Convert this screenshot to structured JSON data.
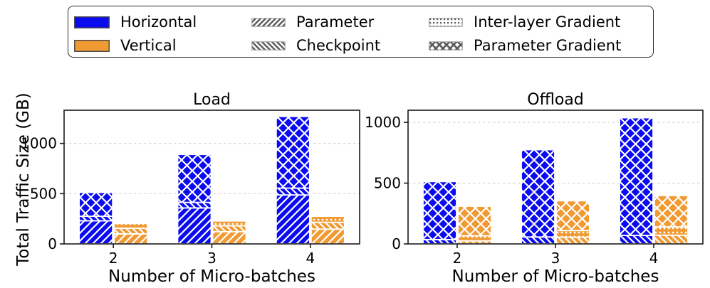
{
  "figure": {
    "colors": {
      "horizontal": "#0b0bf0",
      "vertical": "#f09a33",
      "legend_hatch": "#5a5a5a",
      "grid": "#d2d2d2",
      "axis": "#1a1a1a",
      "bar_edge": "#ffffff"
    }
  },
  "legend": {
    "entries": [
      {
        "label": "Horizontal",
        "swatch": "solid",
        "color": "#0b0bf0",
        "swatch_name": "horizontal-blue-swatch"
      },
      {
        "label": "Vertical",
        "swatch": "solid",
        "color": "#f09a33",
        "swatch_name": "vertical-orange-swatch"
      },
      {
        "label": "Parameter",
        "swatch": "hatch",
        "hatch": "fwd",
        "swatch_name": "parameter-hatch-swatch"
      },
      {
        "label": "Checkpoint",
        "swatch": "hatch",
        "hatch": "back",
        "swatch_name": "checkpoint-hatch-swatch"
      },
      {
        "label": "Inter-layer Gradient",
        "swatch": "hatch",
        "hatch": "dots",
        "swatch_name": "inter-layer-gradient-hatch-swatch"
      },
      {
        "label": "Parameter Gradient",
        "swatch": "hatch",
        "hatch": "cross",
        "swatch_name": "parameter-gradient-hatch-swatch"
      }
    ]
  },
  "hatch_map": {
    "Parameter": "fwd",
    "Checkpoint": "back",
    "Inter-layer Gradient": "dots",
    "Parameter Gradient": "cross"
  },
  "chart_data": [
    {
      "type": "bar",
      "title": "Load",
      "xlabel": "Number of Micro-batches",
      "ylabel": "Total Traffic Size (GB)",
      "categories": [
        "2",
        "3",
        "4"
      ],
      "ylim": [
        0,
        1330
      ],
      "yticks": [
        0,
        500,
        1000
      ],
      "grid": "dashed-horizontal",
      "legend_position": "top",
      "series": [
        {
          "name": "Horizontal",
          "color": "#0b0bf0",
          "stacks": [
            [
              {
                "layer": "Parameter",
                "value": 230
              },
              {
                "layer": "Checkpoint",
                "value": 45
              },
              {
                "layer": "Parameter Gradient",
                "value": 237
              }
            ],
            [
              {
                "layer": "Parameter",
                "value": 358
              },
              {
                "layer": "Checkpoint",
                "value": 55
              },
              {
                "layer": "Parameter Gradient",
                "value": 477
              }
            ],
            [
              {
                "layer": "Parameter",
                "value": 487
              },
              {
                "layer": "Checkpoint",
                "value": 68
              },
              {
                "layer": "Parameter Gradient",
                "value": 713
              }
            ]
          ]
        },
        {
          "name": "Vertical",
          "color": "#f09a33",
          "stacks": [
            [
              {
                "layer": "Parameter",
                "value": 100
              },
              {
                "layer": "Checkpoint",
                "value": 55
              },
              {
                "layer": "Inter-layer Gradient",
                "value": 48
              }
            ],
            [
              {
                "layer": "Parameter",
                "value": 122
              },
              {
                "layer": "Checkpoint",
                "value": 58
              },
              {
                "layer": "Inter-layer Gradient",
                "value": 48
              }
            ],
            [
              {
                "layer": "Parameter",
                "value": 147
              },
              {
                "layer": "Checkpoint",
                "value": 68
              },
              {
                "layer": "Inter-layer Gradient",
                "value": 60
              }
            ]
          ]
        }
      ]
    },
    {
      "type": "bar",
      "title": "Offload",
      "xlabel": "Number of Micro-batches",
      "ylabel": "Total Traffic Size (GB)",
      "categories": [
        "2",
        "3",
        "4"
      ],
      "ylim": [
        0,
        1100
      ],
      "yticks": [
        0,
        500,
        1000
      ],
      "grid": "dashed-horizontal",
      "legend_position": "top",
      "series": [
        {
          "name": "Horizontal",
          "color": "#0b0bf0",
          "stacks": [
            [
              {
                "layer": "Checkpoint",
                "value": 36
              },
              {
                "layer": "Parameter Gradient",
                "value": 477
              }
            ],
            [
              {
                "layer": "Checkpoint",
                "value": 57
              },
              {
                "layer": "Parameter Gradient",
                "value": 718
              }
            ],
            [
              {
                "layer": "Checkpoint",
                "value": 70
              },
              {
                "layer": "Parameter Gradient",
                "value": 968
              }
            ]
          ]
        },
        {
          "name": "Vertical",
          "color": "#f09a33",
          "stacks": [
            [
              {
                "layer": "Checkpoint",
                "value": 25
              },
              {
                "layer": "Inter-layer Gradient",
                "value": 42
              },
              {
                "layer": "Parameter Gradient",
                "value": 243
              }
            ],
            [
              {
                "layer": "Checkpoint",
                "value": 55
              },
              {
                "layer": "Inter-layer Gradient",
                "value": 55
              },
              {
                "layer": "Parameter Gradient",
                "value": 245
              }
            ],
            [
              {
                "layer": "Checkpoint",
                "value": 72
              },
              {
                "layer": "Inter-layer Gradient",
                "value": 68
              },
              {
                "layer": "Parameter Gradient",
                "value": 258
              }
            ]
          ]
        }
      ]
    }
  ]
}
